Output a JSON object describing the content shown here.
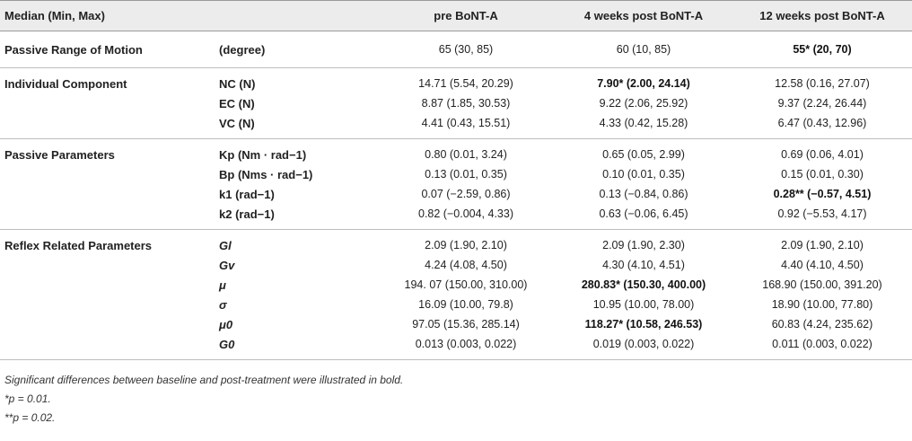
{
  "table": {
    "columns": [
      "Median (Min, Max)",
      "",
      "pre BoNT-A",
      "4 weeks post BoNT-A",
      "12 weeks post BoNT-A"
    ],
    "groups": [
      {
        "label": "Passive Range of Motion",
        "rows": [
          {
            "param": "(degree)",
            "italic": false,
            "pre": "65 (30, 85)",
            "w4": "60 (10, 85)",
            "w12": "55* (20, 70)",
            "bold_w4": false,
            "bold_w12": true
          }
        ]
      },
      {
        "label": "Individual Component",
        "rows": [
          {
            "param": "NC (N)",
            "italic": false,
            "pre": "14.71 (5.54, 20.29)",
            "w4": "7.90* (2.00, 24.14)",
            "w12": "12.58 (0.16, 27.07)",
            "bold_w4": true,
            "bold_w12": false
          },
          {
            "param": "EC (N)",
            "italic": false,
            "pre": "8.87 (1.85, 30.53)",
            "w4": "9.22 (2.06, 25.92)",
            "w12": "9.37 (2.24, 26.44)",
            "bold_w4": false,
            "bold_w12": false
          },
          {
            "param": "VC (N)",
            "italic": false,
            "pre": "4.41 (0.43, 15.51)",
            "w4": "4.33 (0.42, 15.28)",
            "w12": "6.47 (0.43, 12.96)",
            "bold_w4": false,
            "bold_w12": false
          }
        ]
      },
      {
        "label": "Passive Parameters",
        "rows": [
          {
            "param": "Kp (Nm · rad−1)",
            "italic": false,
            "pre": "0.80 (0.01, 3.24)",
            "w4": "0.65 (0.05, 2.99)",
            "w12": "0.69 (0.06, 4.01)",
            "bold_w4": false,
            "bold_w12": false
          },
          {
            "param": "Bp (Nms · rad−1)",
            "italic": false,
            "pre": "0.13 (0.01, 0.35)",
            "w4": "0.10 (0.01, 0.35)",
            "w12": "0.15 (0.01, 0.30)",
            "bold_w4": false,
            "bold_w12": false
          },
          {
            "param": "k1 (rad−1)",
            "italic": false,
            "pre": "0.07 (−2.59, 0.86)",
            "w4": "0.13 (−0.84, 0.86)",
            "w12": "0.28** (−0.57, 4.51)",
            "bold_w4": false,
            "bold_w12": true
          },
          {
            "param": "k2 (rad−1)",
            "italic": false,
            "pre": "0.82 (−0.004, 4.33)",
            "w4": "0.63 (−0.06, 6.45)",
            "w12": "0.92 (−5.53, 4.17)",
            "bold_w4": false,
            "bold_w12": false
          }
        ]
      },
      {
        "label": "Reflex Related Parameters",
        "rows": [
          {
            "param": "Gl",
            "italic": true,
            "pre": "2.09 (1.90, 2.10)",
            "w4": "2.09 (1.90, 2.30)",
            "w12": "2.09 (1.90, 2.10)",
            "bold_w4": false,
            "bold_w12": false
          },
          {
            "param": "Gv",
            "italic": true,
            "pre": "4.24 (4.08, 4.50)",
            "w4": "4.30 (4.10, 4.51)",
            "w12": "4.40 (4.10, 4.50)",
            "bold_w4": false,
            "bold_w12": false
          },
          {
            "param": "μ",
            "italic": true,
            "pre": "194. 07 (150.00, 310.00)",
            "w4": "280.83* (150.30, 400.00)",
            "w12": "168.90 (150.00, 391.20)",
            "bold_w4": true,
            "bold_w12": false
          },
          {
            "param": "σ",
            "italic": true,
            "pre": "16.09 (10.00, 79.8)",
            "w4": "10.95 (10.00, 78.00)",
            "w12": "18.90 (10.00, 77.80)",
            "bold_w4": false,
            "bold_w12": false
          },
          {
            "param": "μ0",
            "italic": true,
            "pre": "97.05 (15.36, 285.14)",
            "w4": "118.27* (10.58, 246.53)",
            "w12": "60.83 (4.24, 235.62)",
            "bold_w4": true,
            "bold_w12": false
          },
          {
            "param": "G0",
            "italic": true,
            "pre": "0.013 (0.003, 0.022)",
            "w4": "0.019 (0.003, 0.022)",
            "w12": "0.011 (0.003, 0.022)",
            "bold_w4": false,
            "bold_w12": false
          }
        ]
      }
    ]
  },
  "footnotes": [
    "Significant differences between baseline and post-treatment were illustrated in bold.",
    "*p = 0.01.",
    "**p = 0.02."
  ]
}
